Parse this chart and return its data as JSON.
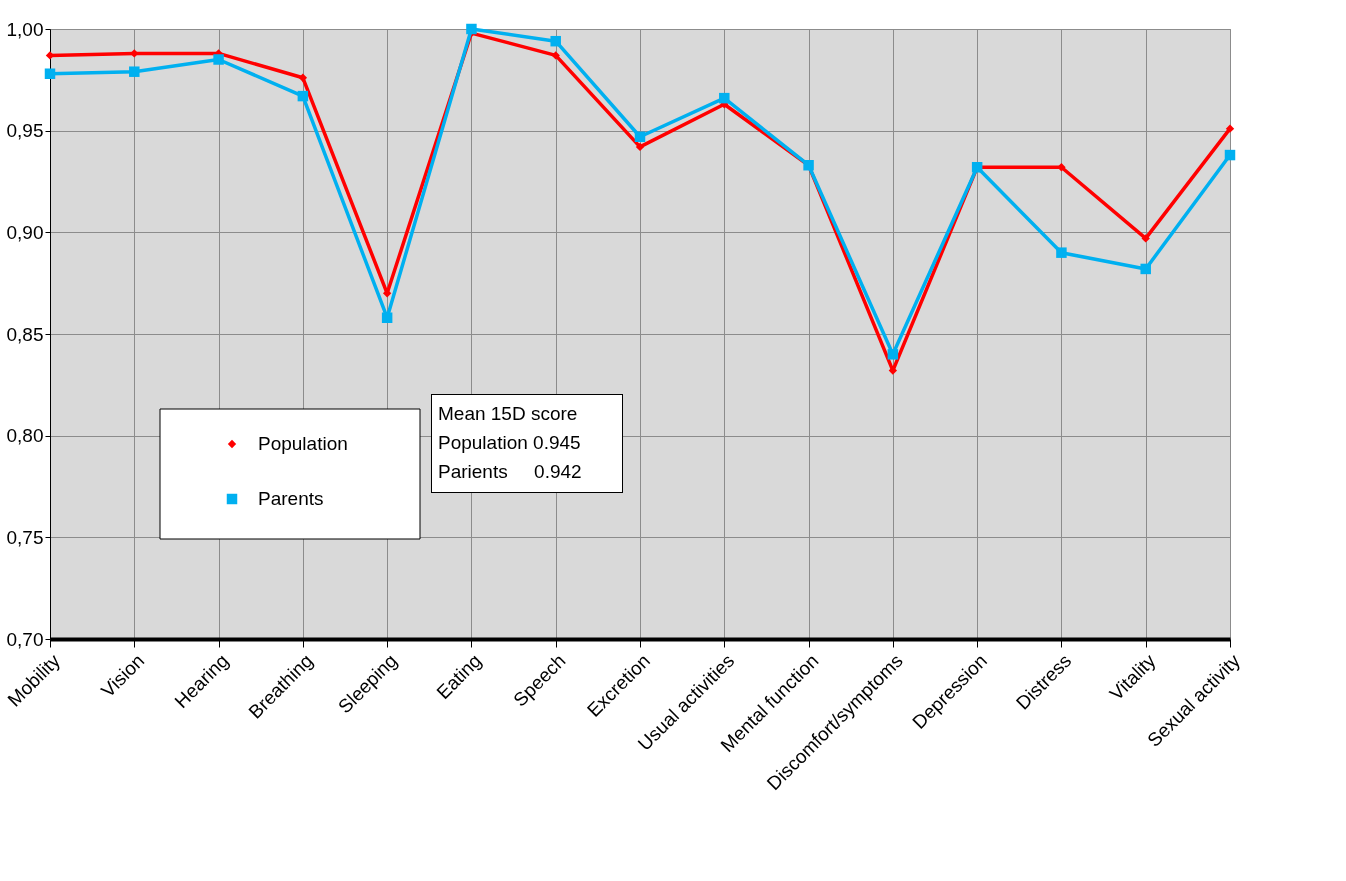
{
  "chart_data": {
    "type": "line",
    "categories": [
      "Mobility",
      "Vision",
      "Hearing",
      "Breathing",
      "Sleeping",
      "Eating",
      "Speech",
      "Excretion",
      "Usual activities",
      "Mental function",
      "Discomfort/symptoms",
      "Depression",
      "Distress",
      "Vitality",
      "Sexual activity"
    ],
    "series": [
      {
        "name": "Population",
        "color": "#ff0000",
        "marker": "diamond",
        "values": [
          0.987,
          0.988,
          0.988,
          0.976,
          0.87,
          0.998,
          0.987,
          0.942,
          0.963,
          0.933,
          0.832,
          0.932,
          0.932,
          0.897,
          0.951
        ]
      },
      {
        "name": "Parents",
        "color": "#00b0f0",
        "marker": "square",
        "values": [
          0.978,
          0.979,
          0.985,
          0.967,
          0.858,
          1.0,
          0.994,
          0.947,
          0.966,
          0.933,
          0.84,
          0.932,
          0.89,
          0.882,
          0.938
        ]
      }
    ],
    "ylim": [
      0.7,
      1.0
    ],
    "yticks": [
      {
        "value": 0.7,
        "label": "0,70"
      },
      {
        "value": 0.75,
        "label": "0,75"
      },
      {
        "value": 0.8,
        "label": "0,80"
      },
      {
        "value": 0.85,
        "label": "0,85"
      },
      {
        "value": 0.9,
        "label": "0,90"
      },
      {
        "value": 0.95,
        "label": "0,95"
      },
      {
        "value": 1.0,
        "label": "1,00"
      }
    ],
    "grid": true,
    "legend": "left",
    "annotations": [
      "Mean 15D score",
      "Population 0.945",
      "Parients     0.942"
    ]
  }
}
